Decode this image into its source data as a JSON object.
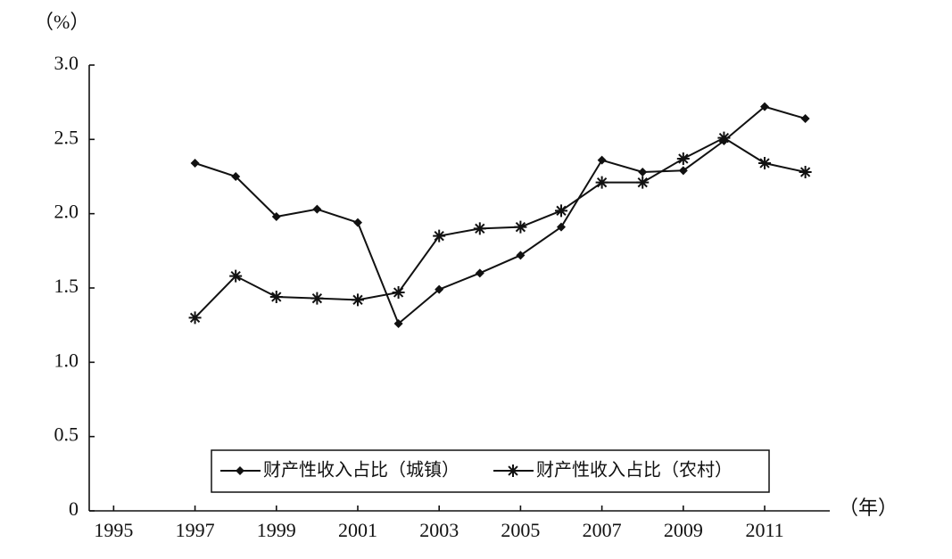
{
  "chart_data": {
    "type": "line",
    "y_label": "（%）",
    "x_label": "（年）",
    "x": [
      1997,
      1998,
      1999,
      2000,
      2001,
      2002,
      2003,
      2004,
      2005,
      2006,
      2007,
      2008,
      2009,
      2010,
      2011,
      2012
    ],
    "series": [
      {
        "name": "财产性收入占比（城镇）",
        "color": "#111111",
        "marker": "diamond",
        "values": [
          2.34,
          2.25,
          1.98,
          2.03,
          1.94,
          1.26,
          1.49,
          1.6,
          1.72,
          1.91,
          2.36,
          2.28,
          2.29,
          2.49,
          2.72,
          2.64
        ]
      },
      {
        "name": "财产性收入占比（农村）",
        "color": "#111111",
        "marker": "star",
        "values": [
          1.3,
          1.58,
          1.44,
          1.43,
          1.42,
          1.47,
          1.85,
          1.9,
          1.91,
          2.02,
          2.21,
          2.21,
          2.37,
          2.51,
          2.34,
          2.28
        ]
      }
    ],
    "xlim": [
      1994.4,
      2012.6
    ],
    "xticks": [
      1995,
      1997,
      1999,
      2001,
      2003,
      2005,
      2007,
      2009,
      2011
    ],
    "ylim": [
      0,
      3
    ],
    "yticks": [
      0,
      0.5,
      {
        "value": 1,
        "label": "1.0"
      },
      1.5,
      {
        "value": 2,
        "label": "2.0"
      },
      2.5,
      {
        "value": 3,
        "label": "3.0"
      }
    ],
    "grid": false,
    "legend": "bottom"
  }
}
